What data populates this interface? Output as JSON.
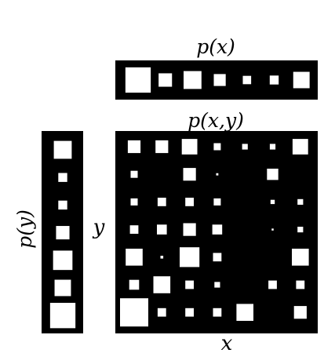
{
  "labels": {
    "px": "p(x)",
    "py": "p(y)",
    "pxy": "p(x,y)",
    "x": "x",
    "y": "y"
  },
  "colors": {
    "background": "#000000",
    "squares": "#ffffff"
  },
  "marginal_x": [
    0.85,
    0.45,
    0.6,
    0.4,
    0.28,
    0.3,
    0.55
  ],
  "marginal_y": [
    0.6,
    0.3,
    0.3,
    0.45,
    0.65,
    0.55,
    0.85
  ],
  "joint": [
    [
      0.45,
      0.45,
      0.55,
      0.25,
      0.2,
      0.2,
      0.55
    ],
    [
      0.25,
      0,
      0.45,
      0.08,
      0,
      0.4,
      0
    ],
    [
      0.25,
      0.3,
      0.3,
      0.25,
      0,
      0.15,
      0.2
    ],
    [
      0.3,
      0.35,
      0.45,
      0.35,
      0,
      0.07,
      0.2
    ],
    [
      0.6,
      0.1,
      0.7,
      0.3,
      0,
      0,
      0.6
    ],
    [
      0.35,
      0.6,
      0.3,
      0.2,
      0,
      0.3,
      0.3
    ],
    [
      1.0,
      0.3,
      0.3,
      0.3,
      0.6,
      0,
      0.45
    ]
  ]
}
